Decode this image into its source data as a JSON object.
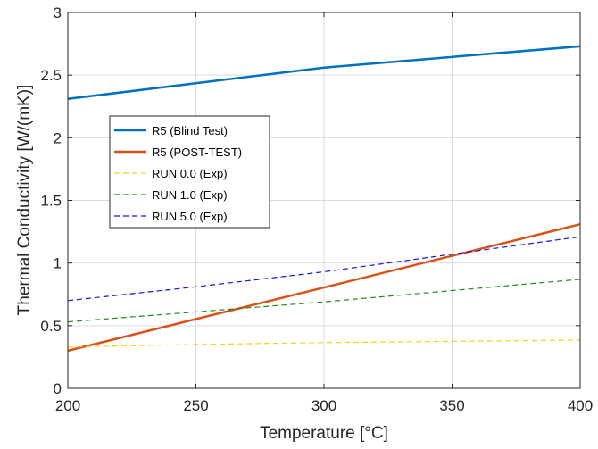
{
  "chart_data": {
    "type": "line",
    "title": "",
    "xlabel": "Temperature [°C]",
    "ylabel": "Thermal Conductivity [W/(mK)]",
    "xlim": [
      200,
      400
    ],
    "ylim": [
      0,
      3
    ],
    "xticks": [
      200,
      250,
      300,
      350,
      400
    ],
    "yticks": [
      0,
      0.5,
      1,
      1.5,
      2,
      2.5,
      3
    ],
    "xtick_labels": [
      "200",
      "250",
      "300",
      "350",
      "400"
    ],
    "ytick_labels": [
      "0",
      "0.5",
      "1",
      "1.5",
      "2",
      "2.5",
      "3"
    ],
    "grid": true,
    "legend_position": "upper-left-inside",
    "series": [
      {
        "name": "R5 (Blind Test)",
        "color": "#0072BD",
        "style": "solid",
        "width": 2.5,
        "x": [
          200,
          300,
          400
        ],
        "y": [
          2.31,
          2.56,
          2.73
        ]
      },
      {
        "name": "R5 (POST-TEST)",
        "color": "#D95319",
        "style": "solid",
        "width": 2.5,
        "x": [
          200,
          400
        ],
        "y": [
          0.3,
          1.31
        ]
      },
      {
        "name": "RUN 0.0 (Exp)",
        "color": "#EDD41C",
        "style": "dashed",
        "width": 1.2,
        "x": [
          200,
          250,
          300,
          350,
          400
        ],
        "y": [
          0.33,
          0.35,
          0.365,
          0.375,
          0.385
        ]
      },
      {
        "name": "RUN 1.0 (Exp)",
        "color": "#1E8C1E",
        "style": "dashed",
        "width": 1.2,
        "x": [
          200,
          250,
          300,
          350,
          400
        ],
        "y": [
          0.53,
          0.61,
          0.69,
          0.78,
          0.87
        ]
      },
      {
        "name": "RUN 5.0 (Exp)",
        "color": "#1414E6",
        "style": "dashed",
        "width": 1.2,
        "x": [
          200,
          250,
          300,
          350,
          400
        ],
        "y": [
          0.7,
          0.81,
          0.93,
          1.07,
          1.21
        ]
      }
    ]
  }
}
